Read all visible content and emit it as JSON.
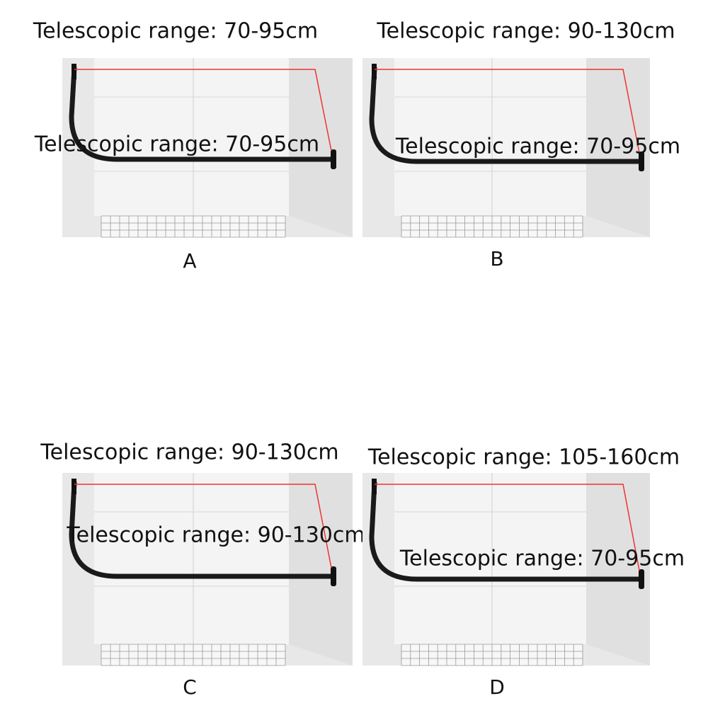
{
  "panels": [
    {
      "label": "A",
      "top_range": "Telescopic range: 70-95cm",
      "side_range": "Telescopic range: 70-95cm"
    },
    {
      "label": "B",
      "top_range": "Telescopic range: 90-130cm",
      "side_range": "Telescopic range: 70-95cm"
    },
    {
      "label": "C",
      "top_range": "Telescopic range: 90-130cm",
      "side_range": "Telescopic range: 90-130cm"
    },
    {
      "label": "D",
      "top_range": "Telescopic range: 105-160cm",
      "side_range": "Telescopic range: 70-95cm"
    }
  ]
}
